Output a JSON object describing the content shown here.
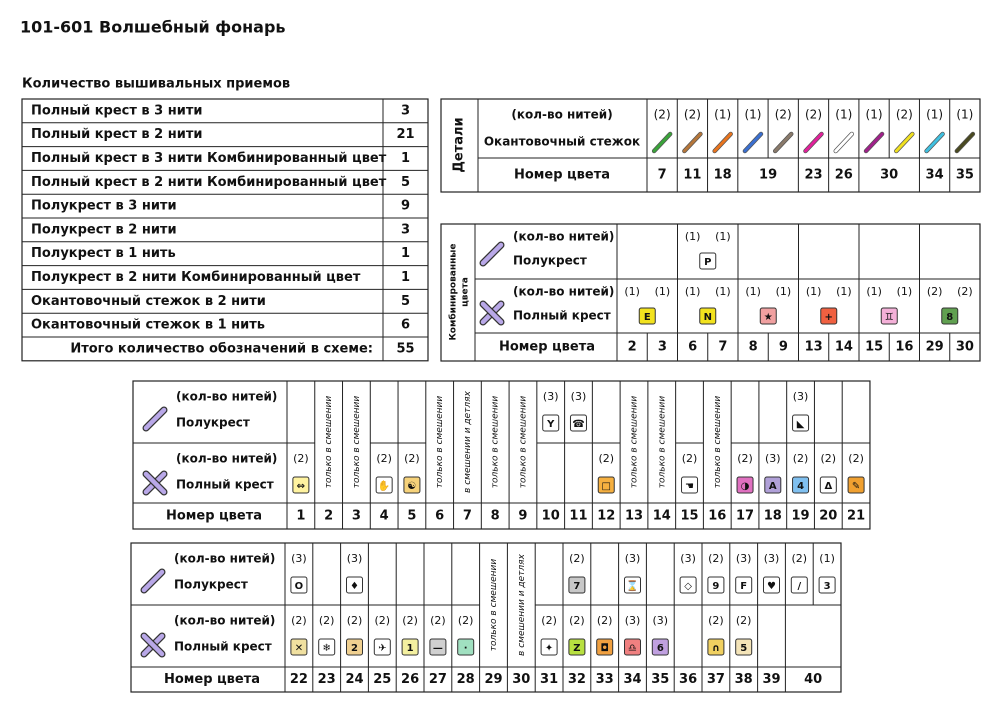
{
  "title": "101-601 Волшебный фонарь",
  "summary": {
    "heading": "Количество вышивальных приемов",
    "rows": [
      [
        "Полный крест в 3 нити",
        3
      ],
      [
        "Полный крест в 2 нити",
        21
      ],
      [
        "Полный крест в 3 нити Комбинированный цвет",
        1
      ],
      [
        "Полный крест в 2 нити Комбинированный цвет",
        5
      ],
      [
        "Полукрест в 3 нити",
        9
      ],
      [
        "Полукрест в 2 нити",
        3
      ],
      [
        "Полукрест в 1 нить",
        1
      ],
      [
        "Полукрест в 2 нити Комбинированный цвет",
        1
      ],
      [
        "Окантовочный стежок в 2 нити",
        5
      ],
      [
        "Окантовочный стежок в 1 нить",
        6
      ]
    ],
    "total": [
      "Итого количество обозначений в схеме:",
      55
    ]
  },
  "details": {
    "label": "Детали",
    "threads_label": "(кол-во нитей)",
    "stitch_label": "Окантовочный стежок",
    "number_label": "Номер цвета",
    "columns": [
      {
        "number": 7,
        "stitches": [
          {
            "threads": "(2)",
            "color": "#3aa33a"
          }
        ]
      },
      {
        "number": 11,
        "stitches": [
          {
            "threads": "(2)",
            "color": "#b5763a"
          }
        ]
      },
      {
        "number": 18,
        "stitches": [
          {
            "threads": "(1)",
            "color": "#e8741e"
          }
        ]
      },
      {
        "number": 19,
        "stitches": [
          {
            "threads": "(1)",
            "color": "#3a6fd0"
          },
          {
            "threads": "(2)",
            "color": "#8a7a6a"
          }
        ]
      },
      {
        "number": 23,
        "stitches": [
          {
            "threads": "(2)",
            "color": "#e0209a"
          }
        ]
      },
      {
        "number": 26,
        "stitches": [
          {
            "threads": "(1)",
            "color": "#ffffff"
          }
        ]
      },
      {
        "number": 30,
        "stitches": [
          {
            "threads": "(1)",
            "color": "#a0208a"
          },
          {
            "threads": "(2)",
            "color": "#f0e020"
          }
        ]
      },
      {
        "number": 34,
        "stitches": [
          {
            "threads": "(1)",
            "color": "#40c0e0"
          }
        ]
      },
      {
        "number": 35,
        "stitches": [
          {
            "threads": "(1)",
            "color": "#4a4a20"
          }
        ]
      }
    ]
  },
  "combined": {
    "label": [
      "Комбинированные",
      "цвета"
    ],
    "half_threads_label": "(кол-во нитей)",
    "half_label": "Полукрест",
    "full_threads_label": "(кол-во нитей)",
    "full_label": "Полный крест",
    "number_label": "Номер цвета",
    "groups": [
      {
        "numbers": [
          2,
          3
        ],
        "half": null,
        "full": {
          "threads": [
            "(1)",
            "(1)"
          ],
          "symbol": "E",
          "fg": "#222",
          "bg": "#f2e21e"
        }
      },
      {
        "numbers": [
          6,
          7
        ],
        "half": {
          "threads": [
            "(1)",
            "(1)"
          ],
          "symbol": "P",
          "fg": "#1a9a8a",
          "bg": "#ffffff"
        },
        "full": {
          "threads": [
            "(1)",
            "(1)"
          ],
          "symbol": "N",
          "fg": "#222",
          "bg": "#f2e21e"
        }
      },
      {
        "numbers": [
          8,
          9
        ],
        "half": null,
        "full": {
          "threads": [
            "(1)",
            "(1)"
          ],
          "symbol": "★",
          "fg": "#222",
          "bg": "#f0a0a0"
        }
      },
      {
        "numbers": [
          13,
          14
        ],
        "half": null,
        "full": {
          "threads": [
            "(1)",
            "(1)"
          ],
          "symbol": "+",
          "fg": "#222",
          "bg": "#f06040"
        }
      },
      {
        "numbers": [
          15,
          16
        ],
        "half": null,
        "full": {
          "threads": [
            "(1)",
            "(1)"
          ],
          "symbol": "♊",
          "fg": "#702080",
          "bg": "#f4b0d8"
        }
      },
      {
        "numbers": [
          29,
          30
        ],
        "half": null,
        "full": {
          "threads": [
            "(2)",
            "(2)"
          ],
          "symbol": "8",
          "fg": "#222",
          "bg": "#60a050"
        }
      }
    ]
  },
  "tables": [
    {
      "half_threads_label": "(кол-во нитей)",
      "half_label": "Полукрест",
      "full_threads_label": "(кол-во нитей)",
      "full_label": "Полный крест",
      "number_label": "Номер цвета",
      "columns": [
        {
          "number": 1,
          "half": null,
          "full": {
            "threads": "(2)",
            "symbol": "⇔",
            "fg": "#333",
            "bg": "#fff3a0"
          }
        },
        {
          "number": 2,
          "note": "только в смешении"
        },
        {
          "number": 3,
          "note": "только в смешении"
        },
        {
          "number": 4,
          "half": null,
          "full": {
            "threads": "(2)",
            "symbol": "✋",
            "fg": "#555",
            "bg": "#ffffff"
          }
        },
        {
          "number": 5,
          "half": null,
          "full": {
            "threads": "(2)",
            "symbol": "☯",
            "fg": "#222",
            "bg": "#f6d27a"
          }
        },
        {
          "number": 6,
          "note": "только в смешении"
        },
        {
          "number": 7,
          "note": "в смешении и детлях"
        },
        {
          "number": 8,
          "note": "только в смешении"
        },
        {
          "number": 9,
          "note": "только в смешении"
        },
        {
          "number": 10,
          "half": [
            {
              "threads": "(3)",
              "symbol": "Y",
              "fg": "#8a6d00",
              "bg": "#ffffff"
            }
          ],
          "full": null
        },
        {
          "number": 11,
          "half": [
            {
              "threads": "(3)",
              "symbol": "☎",
              "fg": "#666",
              "bg": "#ffffff"
            }
          ],
          "full": null
        },
        {
          "number": 12,
          "half": null,
          "full": {
            "threads": "(2)",
            "symbol": "□",
            "fg": "#333",
            "bg": "#f6b040"
          }
        },
        {
          "number": 13,
          "note": "только в смешении"
        },
        {
          "number": 14,
          "note": "только в смешении"
        },
        {
          "number": 15,
          "half": null,
          "full": {
            "threads": "(2)",
            "symbol": "☚",
            "fg": "#8a3aa0",
            "bg": "#ffffff"
          }
        },
        {
          "number": 16,
          "note": "только в смешении"
        },
        {
          "number": 17,
          "half": null,
          "full": {
            "threads": "(2)",
            "symbol": "◑",
            "fg": "#222",
            "bg": "#e070c0"
          }
        },
        {
          "number": 18,
          "half": null,
          "full": {
            "threads": "(3)",
            "symbol": "A",
            "fg": "#222",
            "bg": "#b0a0d8"
          }
        },
        {
          "number": 19,
          "half": [
            {
              "threads": "(3)",
              "symbol": "◣",
              "fg": "#d8b800",
              "bg": "#ffffff"
            }
          ],
          "full": {
            "threads": "(2)",
            "symbol": "4",
            "fg": "#222",
            "bg": "#80c0f0"
          }
        },
        {
          "number": 20,
          "half": null,
          "full": {
            "threads": "(2)",
            "symbol": "Δ",
            "fg": "#e08020",
            "bg": "#ffffff"
          }
        },
        {
          "number": 21,
          "half": null,
          "full": {
            "threads": "(2)",
            "symbol": "✎",
            "fg": "#222",
            "bg": "#f0a030"
          }
        }
      ]
    },
    {
      "half_threads_label": "(кол-во нитей)",
      "half_label": "Полукрест",
      "full_threads_label": "(кол-во нитей)",
      "full_label": "Полный крест",
      "number_label": "Номер цвета",
      "columns": [
        {
          "number": 22,
          "half": [
            {
              "threads": "(3)",
              "symbol": "O",
              "fg": "#8a2aa0",
              "bg": "#ffffff"
            }
          ],
          "full": {
            "threads": "(2)",
            "symbol": "✕",
            "fg": "#222",
            "bg": "#f0e0a0"
          }
        },
        {
          "number": 23,
          "half": null,
          "full": {
            "threads": "(2)",
            "symbol": "❄",
            "fg": "#333",
            "bg": "#ffffff"
          }
        },
        {
          "number": 24,
          "half": [
            {
              "threads": "(3)",
              "symbol": "♦",
              "fg": "#e87020",
              "bg": "#ffffff"
            }
          ],
          "full": {
            "threads": "(2)",
            "symbol": "2",
            "fg": "#222",
            "bg": "#f0d090"
          }
        },
        {
          "number": 25,
          "half": null,
          "full": {
            "threads": "(2)",
            "symbol": "✈",
            "fg": "#8a2aa0",
            "bg": "#ffffff"
          }
        },
        {
          "number": 26,
          "half": null,
          "full": {
            "threads": "(2)",
            "symbol": "1",
            "fg": "#222",
            "bg": "#f4f0a0"
          }
        },
        {
          "number": 27,
          "half": null,
          "full": {
            "threads": "(2)",
            "symbol": "—",
            "fg": "#222",
            "bg": "#d0d0d0"
          }
        },
        {
          "number": 28,
          "half": null,
          "full": {
            "threads": "(2)",
            "symbol": "·",
            "fg": "#222",
            "bg": "#a0e0c0"
          }
        },
        {
          "number": 29,
          "note": "только в смешении"
        },
        {
          "number": 30,
          "note": "в смешении и детлях"
        },
        {
          "number": 31,
          "half": null,
          "full": {
            "threads": "(2)",
            "symbol": "✦",
            "fg": "#c09000",
            "bg": "#ffffff"
          }
        },
        {
          "number": 32,
          "half": [
            {
              "threads": "(2)",
              "symbol": "7",
              "fg": "#555",
              "bg": "#c8c8c8"
            }
          ],
          "full": {
            "threads": "(2)",
            "symbol": "Z",
            "fg": "#222",
            "bg": "#b8e040"
          }
        },
        {
          "number": 33,
          "half": null,
          "full": {
            "threads": "(2)",
            "symbol": "◘",
            "fg": "#222",
            "bg": "#f0a040"
          }
        },
        {
          "number": 34,
          "half": [
            {
              "threads": "(3)",
              "symbol": "⌛",
              "fg": "#d03030",
              "bg": "#ffffff"
            }
          ],
          "full": {
            "threads": "(3)",
            "symbol": "♎",
            "fg": "#222",
            "bg": "#f08080"
          }
        },
        {
          "number": 35,
          "half": null,
          "full": {
            "threads": "(3)",
            "symbol": "6",
            "fg": "#222",
            "bg": "#c0a0e0"
          }
        },
        {
          "number": 36,
          "half": [
            {
              "threads": "(3)",
              "symbol": "◇",
              "fg": "#3a9a3a",
              "bg": "#ffffff"
            }
          ],
          "full": null
        },
        {
          "number": 37,
          "half": [
            {
              "threads": "(2)",
              "symbol": "9",
              "fg": "#d03030",
              "bg": "#ffffff"
            }
          ],
          "full": {
            "threads": "(2)",
            "symbol": "∩",
            "fg": "#222",
            "bg": "#f0d060"
          }
        },
        {
          "number": 38,
          "half": [
            {
              "threads": "(3)",
              "symbol": "F",
              "fg": "#d03030",
              "bg": "#ffffff"
            }
          ],
          "full": {
            "threads": "(2)",
            "symbol": "5",
            "fg": "#222",
            "bg": "#f4e4b8"
          }
        },
        {
          "number": 39,
          "half": [
            {
              "threads": "(3)",
              "symbol": "♥",
              "fg": "#3040a0",
              "bg": "#ffffff"
            }
          ],
          "full": null
        },
        {
          "number": 40,
          "half": [
            {
              "threads": "(2)",
              "symbol": "/",
              "fg": "#333",
              "bg": "#ffffff"
            },
            {
              "threads": "(1)",
              "symbol": "3",
              "fg": "#40a0e0",
              "bg": "#ffffff"
            }
          ],
          "full": null
        }
      ]
    }
  ]
}
